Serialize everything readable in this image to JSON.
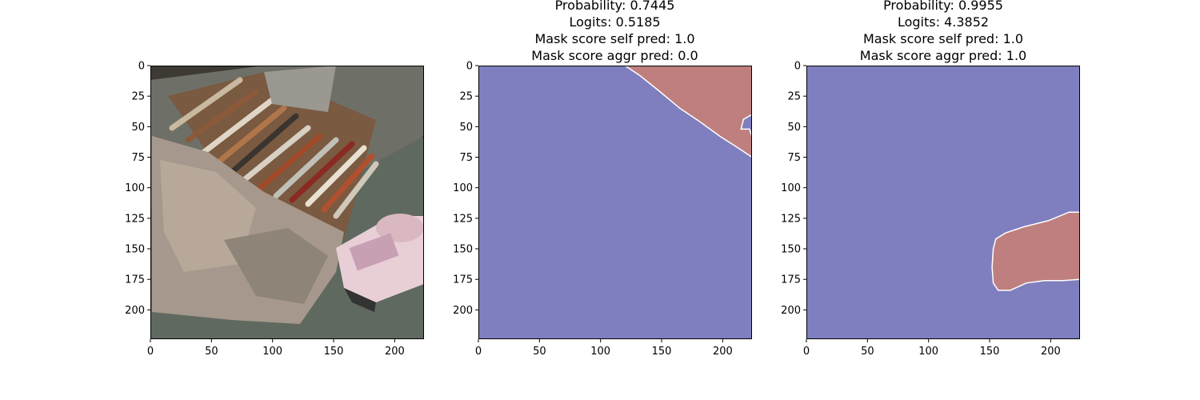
{
  "colors": {
    "background_class": "#7f7fbf",
    "foreground_class": "#bf7f7f",
    "boundary": "#ffffff"
  },
  "chart_data": [
    {
      "type": "image",
      "content": "photo of paint brushes on a wooden tray, crumpled paper and a spray can",
      "title_lines": [],
      "xlim": [
        0,
        224
      ],
      "ylim": [
        224,
        0
      ],
      "xticks": [
        0,
        50,
        100,
        150,
        200
      ],
      "yticks": [
        0,
        25,
        50,
        75,
        100,
        125,
        150,
        175,
        200
      ]
    },
    {
      "type": "heatmap",
      "title_lines": [
        "Probability: 0.7445",
        "Logits: 0.5185",
        "Mask score self pred: 1.0",
        "Mask score aggr pred: 0.0"
      ],
      "xlim": [
        0,
        224
      ],
      "ylim": [
        224,
        0
      ],
      "xticks": [
        0,
        50,
        100,
        150,
        200
      ],
      "yticks": [
        0,
        25,
        50,
        75,
        100,
        125,
        150,
        175,
        200
      ],
      "mask_region_outline": [
        [
          120,
          0
        ],
        [
          224,
          0
        ],
        [
          224,
          40
        ],
        [
          217,
          44
        ],
        [
          215,
          52
        ],
        [
          222,
          52
        ],
        [
          224,
          58
        ],
        [
          224,
          75
        ],
        [
          212,
          67
        ],
        [
          198,
          58
        ],
        [
          180,
          45
        ],
        [
          165,
          35
        ],
        [
          147,
          20
        ],
        [
          132,
          8
        ]
      ]
    },
    {
      "type": "heatmap",
      "title_lines": [
        "Probability: 0.9955",
        "Logits: 4.3852",
        "Mask score self pred: 1.0",
        "Mask score aggr pred: 1.0"
      ],
      "xlim": [
        0,
        224
      ],
      "ylim": [
        224,
        0
      ],
      "xticks": [
        0,
        50,
        100,
        150,
        200
      ],
      "yticks": [
        0,
        25,
        50,
        75,
        100,
        125,
        150,
        175,
        200
      ],
      "mask_region_outline": [
        [
          155,
          142
        ],
        [
          163,
          137
        ],
        [
          178,
          132
        ],
        [
          198,
          127
        ],
        [
          215,
          120
        ],
        [
          224,
          120
        ],
        [
          224,
          175
        ],
        [
          210,
          176
        ],
        [
          195,
          176
        ],
        [
          180,
          178
        ],
        [
          167,
          184
        ],
        [
          157,
          184
        ],
        [
          153,
          178
        ],
        [
          152,
          165
        ],
        [
          153,
          150
        ]
      ]
    }
  ]
}
